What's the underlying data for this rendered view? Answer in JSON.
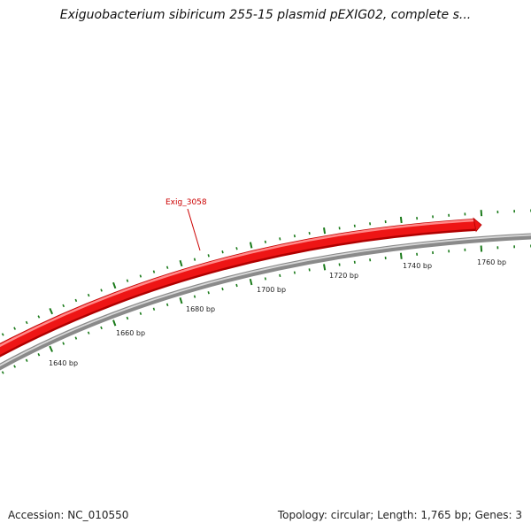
{
  "title": "Exiguobacterium sibiricum 255-15 plasmid pEXIG02, complete s...",
  "footer": {
    "accession": "Accession: NC_010550",
    "summary": "Topology: circular; Length: 1,765 bp; Genes: 3"
  },
  "colors": {
    "gene": "#ee1111",
    "gene_highlight": "#ff7070",
    "gene_shadow": "#a00000",
    "backbone": "#888888",
    "backbone_highlight": "#d8d8d8",
    "ticks": "#1a7a1a",
    "gene_label": "#cc0000"
  },
  "scale_labels": [
    "1640 bp",
    "1660 bp",
    "1680 bp",
    "1700 bp",
    "1720 bp",
    "1740 bp",
    "1760 bp"
  ],
  "gene": {
    "label": "Exig_3058"
  }
}
